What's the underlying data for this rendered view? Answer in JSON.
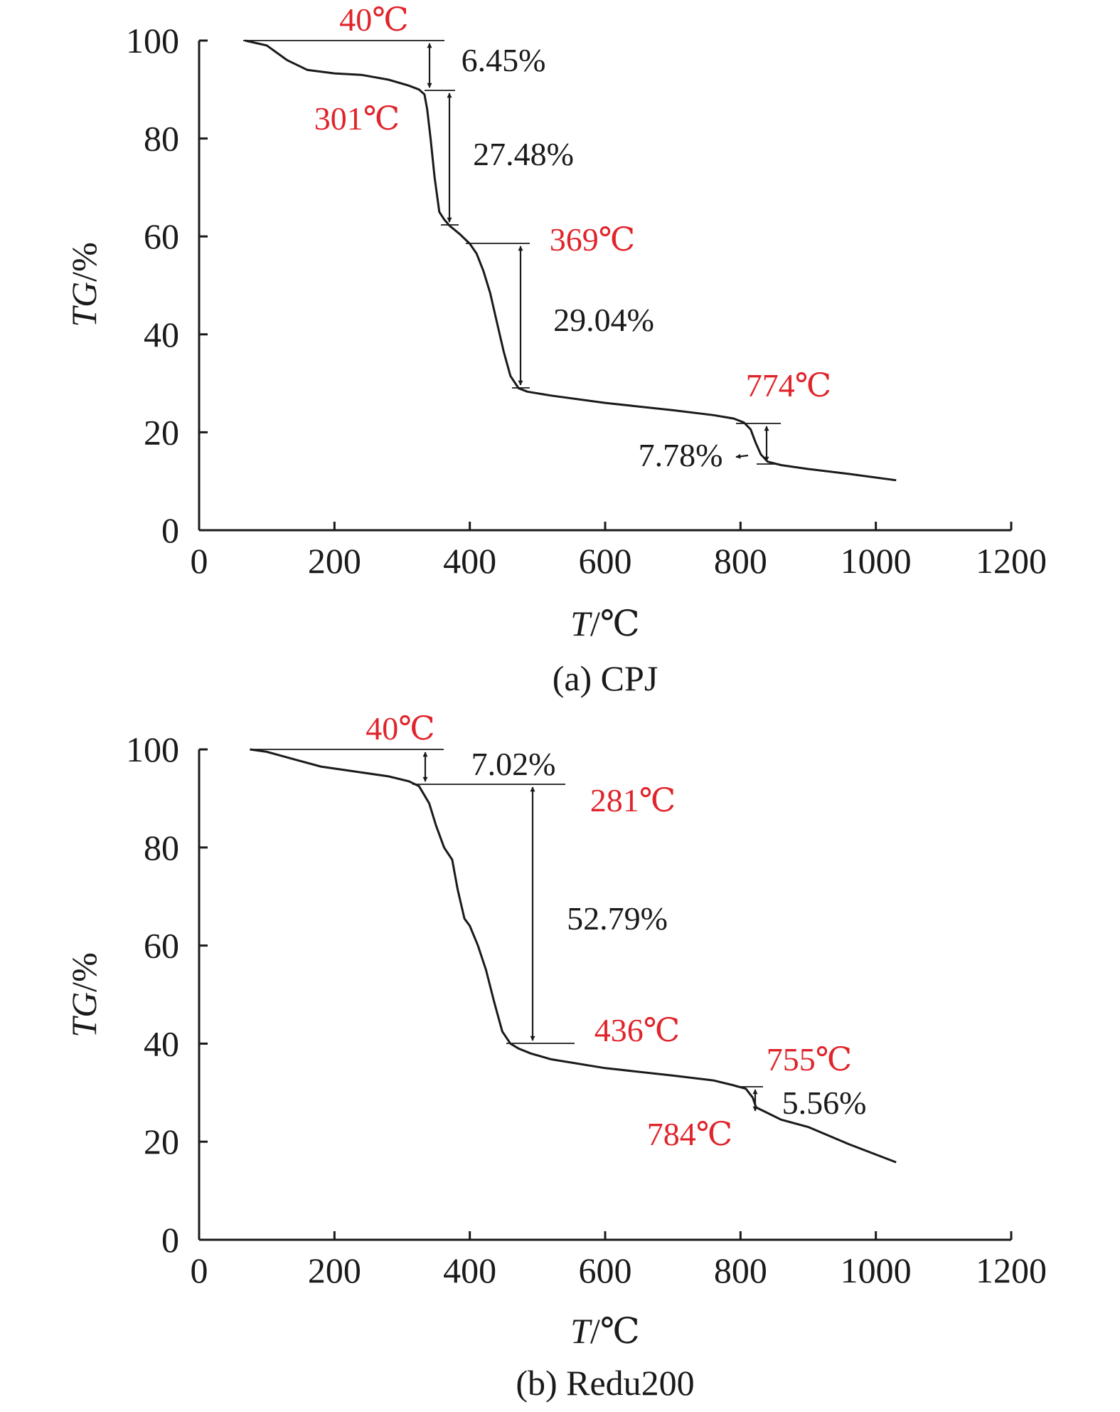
{
  "chart_data": [
    {
      "id": "a",
      "type": "line",
      "caption": "(a) CPJ",
      "xlabel_italic": "T",
      "xlabel_rest": "/℃",
      "ylabel_italic": "TG",
      "ylabel_rest": "/%",
      "xlim": [
        0,
        1200
      ],
      "ylim": [
        0,
        100
      ],
      "xticks": [
        0,
        200,
        400,
        600,
        800,
        1000,
        1200
      ],
      "yticks": [
        0,
        20,
        40,
        60,
        80,
        100
      ],
      "colors": {
        "curve": "#1a1a1a",
        "annotation_temperature": "#e0242b",
        "annotation_percent": "#1a1a1a"
      },
      "series": [
        {
          "x": [
            68,
            100,
            130,
            160,
            200,
            240,
            280,
            310,
            325,
            333,
            337,
            342,
            348,
            355,
            362,
            370,
            385,
            400,
            410,
            420,
            430,
            440,
            450,
            460,
            472,
            485,
            520,
            600,
            700,
            760,
            790,
            805,
            815,
            822,
            830,
            840,
            860,
            900,
            960,
            1030
          ],
          "y": [
            100,
            99,
            96,
            94,
            93.3,
            93,
            92,
            90.8,
            90,
            89,
            86,
            80,
            72,
            65,
            63.5,
            62.2,
            60.5,
            58.5,
            56.5,
            53,
            48.5,
            42.5,
            36.5,
            31.5,
            29,
            28.3,
            27.5,
            26,
            24.5,
            23.5,
            22.8,
            22,
            20.6,
            18,
            15.5,
            14,
            13.3,
            12.5,
            11.5,
            10.2
          ]
        }
      ],
      "temperature_labels": [
        "40℃",
        "301℃",
        "369℃",
        "774℃"
      ],
      "percent_labels": [
        "6.45%",
        "27.48%",
        "29.04%",
        "7.78%"
      ]
    },
    {
      "id": "b",
      "type": "line",
      "caption": "(b) Redu200",
      "xlabel_italic": "T",
      "xlabel_rest": "/℃",
      "ylabel_italic": "TG",
      "ylabel_rest": "/%",
      "xlim": [
        0,
        1200
      ],
      "ylim": [
        0,
        100
      ],
      "xticks": [
        0,
        200,
        400,
        600,
        800,
        1000,
        1200
      ],
      "yticks": [
        0,
        20,
        40,
        60,
        80,
        100
      ],
      "colors": {
        "curve": "#1a1a1a",
        "annotation_temperature": "#e0242b",
        "annotation_percent": "#1a1a1a"
      },
      "series": [
        {
          "x": [
            75,
            100,
            140,
            180,
            230,
            280,
            310,
            325,
            340,
            350,
            362,
            374,
            382,
            392,
            400,
            412,
            424,
            436,
            448,
            460,
            472,
            490,
            520,
            600,
            700,
            760,
            790,
            808,
            818,
            823,
            835,
            860,
            900,
            960,
            1030
          ],
          "y": [
            100,
            99.5,
            98,
            96.5,
            95.5,
            94.5,
            93.5,
            92.5,
            89,
            84.5,
            80,
            77.5,
            71.5,
            65.5,
            64,
            60,
            55,
            48.5,
            42.5,
            40,
            39,
            38,
            36.8,
            35,
            33.5,
            32.5,
            31.5,
            30.8,
            29,
            27,
            26.2,
            24.5,
            23,
            19.5,
            15.8
          ]
        }
      ],
      "temperature_labels": [
        "40℃",
        "281℃",
        "436℃",
        "755℃",
        "784℃"
      ],
      "percent_labels": [
        "7.02%",
        "52.79%",
        "5.56%"
      ]
    }
  ]
}
